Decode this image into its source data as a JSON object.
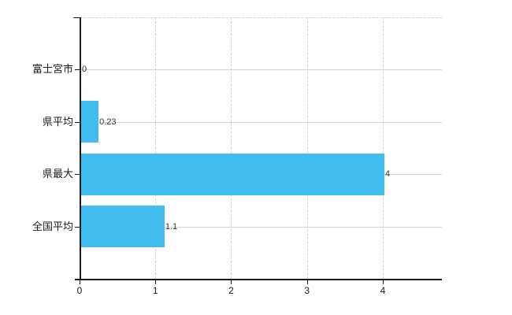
{
  "chart_data": {
    "type": "bar",
    "orientation": "horizontal",
    "categories": [
      "富士宮市",
      "県平均",
      "県最大",
      "全国平均"
    ],
    "values": [
      0,
      0.23,
      4,
      1.1
    ],
    "value_labels": [
      "0",
      "0.23",
      "4",
      "1.1"
    ],
    "x_ticks": [
      "0",
      "1",
      "2",
      "3",
      "4"
    ],
    "x_tick_values": [
      0,
      1,
      2,
      3,
      4
    ],
    "xlim": [
      0,
      4.78
    ],
    "grid": true,
    "legend": false,
    "colors": {
      "bar": "#42bdef",
      "grid": "#d6d6d6",
      "axis": "#1a1a1a",
      "category_label": "#1a1a1a",
      "value_label": "#333333",
      "tick_label": "#1a1a1a",
      "background": "#ffffff"
    }
  }
}
